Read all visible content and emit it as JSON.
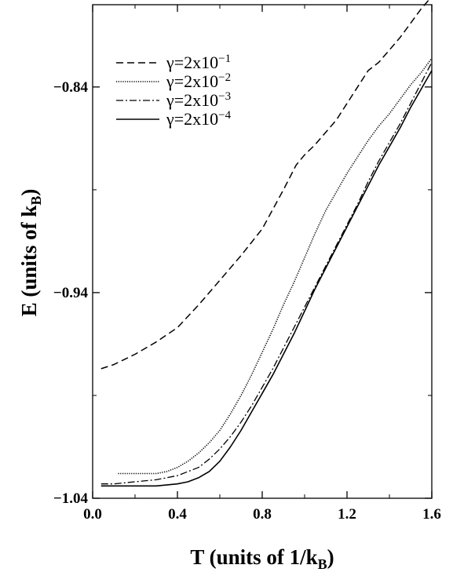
{
  "chart_data": {
    "type": "line",
    "xlabel": {
      "main": "T (units of 1/k",
      "sub": "B",
      "end": ")"
    },
    "ylabel": {
      "main": "E (units of k",
      "sub": "B",
      "end": ")"
    },
    "xlim": [
      0.0,
      1.6
    ],
    "ylim": [
      -1.04,
      -0.8
    ],
    "x_ticks": [
      "0.0",
      "0.4",
      "0.8",
      "1.2",
      "1.6"
    ],
    "x_tick_values": [
      0.0,
      0.4,
      0.8,
      1.2,
      1.6
    ],
    "y_ticks": [
      "-0.84",
      "-0.94",
      "-1.04"
    ],
    "y_tick_values": [
      -0.84,
      -0.94,
      -1.04
    ],
    "grid": false,
    "legend_position": "top-left",
    "series": [
      {
        "name": "γ=2x10",
        "exponent": "−1",
        "style": "dashed",
        "x": [
          0.04,
          0.1,
          0.2,
          0.3,
          0.4,
          0.5,
          0.6,
          0.7,
          0.8,
          0.9,
          0.96,
          1.0,
          1.05,
          1.1,
          1.15,
          1.2,
          1.25,
          1.3,
          1.35,
          1.4,
          1.45,
          1.5,
          1.55,
          1.6
        ],
        "y": [
          -0.977,
          -0.975,
          -0.97,
          -0.964,
          -0.957,
          -0.946,
          -0.934,
          -0.922,
          -0.909,
          -0.89,
          -0.878,
          -0.873,
          -0.868,
          -0.862,
          -0.856,
          -0.848,
          -0.84,
          -0.832,
          -0.828,
          -0.822,
          -0.816,
          -0.809,
          -0.802,
          -0.796
        ]
      },
      {
        "name": "γ=2x10",
        "exponent": "−2",
        "style": "dotted",
        "x": [
          0.12,
          0.2,
          0.3,
          0.35,
          0.4,
          0.45,
          0.5,
          0.55,
          0.6,
          0.65,
          0.7,
          0.75,
          0.8,
          0.85,
          0.9,
          0.95,
          1.0,
          1.05,
          1.1,
          1.15,
          1.2,
          1.25,
          1.3,
          1.35,
          1.4,
          1.45,
          1.5,
          1.55,
          1.6
        ],
        "y": [
          -1.028,
          -1.028,
          -1.028,
          -1.027,
          -1.025,
          -1.022,
          -1.018,
          -1.013,
          -1.007,
          -0.999,
          -0.99,
          -0.98,
          -0.969,
          -0.958,
          -0.946,
          -0.935,
          -0.923,
          -0.911,
          -0.9,
          -0.891,
          -0.882,
          -0.874,
          -0.866,
          -0.859,
          -0.853,
          -0.846,
          -0.839,
          -0.833,
          -0.826
        ]
      },
      {
        "name": "γ=2x10",
        "exponent": "−3",
        "style": "dashdot",
        "x": [
          0.04,
          0.1,
          0.2,
          0.3,
          0.4,
          0.45,
          0.5,
          0.55,
          0.6,
          0.65,
          0.7,
          0.75,
          0.8,
          0.85,
          0.9,
          0.95,
          1.0,
          1.05,
          1.1,
          1.15,
          1.2,
          1.25,
          1.3,
          1.35,
          1.4,
          1.45,
          1.5,
          1.55,
          1.6
        ],
        "y": [
          -1.033,
          -1.033,
          -1.032,
          -1.031,
          -1.029,
          -1.027,
          -1.025,
          -1.021,
          -1.016,
          -1.01,
          -1.003,
          -0.995,
          -0.986,
          -0.977,
          -0.967,
          -0.957,
          -0.947,
          -0.937,
          -0.927,
          -0.917,
          -0.907,
          -0.897,
          -0.886,
          -0.876,
          -0.867,
          -0.858,
          -0.848,
          -0.838,
          -0.828
        ]
      },
      {
        "name": "γ=2x10",
        "exponent": "−4",
        "style": "solid",
        "x": [
          0.04,
          0.1,
          0.2,
          0.3,
          0.4,
          0.45,
          0.5,
          0.55,
          0.6,
          0.65,
          0.7,
          0.75,
          0.8,
          0.85,
          0.9,
          0.95,
          1.0,
          1.05,
          1.1,
          1.15,
          1.2,
          1.25,
          1.3,
          1.35,
          1.4,
          1.45,
          1.5,
          1.55,
          1.6
        ],
        "y": [
          -1.034,
          -1.034,
          -1.034,
          -1.034,
          -1.033,
          -1.032,
          -1.03,
          -1.027,
          -1.022,
          -1.015,
          -1.007,
          -0.998,
          -0.989,
          -0.98,
          -0.97,
          -0.96,
          -0.949,
          -0.938,
          -0.928,
          -0.918,
          -0.908,
          -0.898,
          -0.888,
          -0.878,
          -0.869,
          -0.86,
          -0.85,
          -0.841,
          -0.832
        ]
      }
    ]
  }
}
